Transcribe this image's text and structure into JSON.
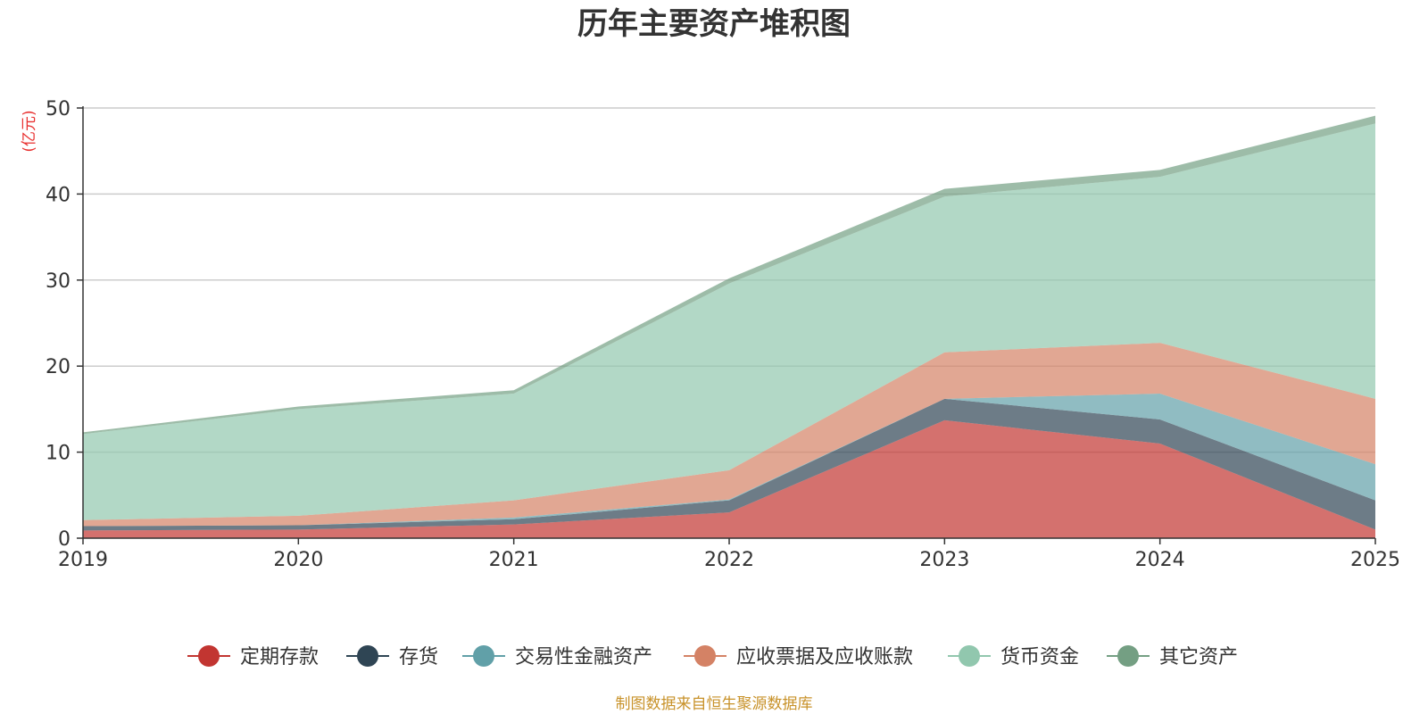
{
  "chart_data": {
    "type": "area",
    "stacked": true,
    "title": "历年主要资产堆积图",
    "ylabel": "(亿元)",
    "xlabel": "",
    "categories": [
      "2019",
      "2020",
      "2021",
      "2022",
      "2023",
      "2024",
      "2025"
    ],
    "ylim": [
      0,
      50
    ],
    "yticks": [
      "0",
      "10",
      "20",
      "30",
      "40",
      "50"
    ],
    "grid": true,
    "legend_position": "bottom",
    "series": [
      {
        "name": "定期存款",
        "color": "#c23531",
        "values": [
          0.9,
          1.0,
          1.6,
          3.0,
          13.7,
          11.0,
          1.0
        ]
      },
      {
        "name": "存货",
        "color": "#2f4554",
        "values": [
          0.5,
          0.5,
          0.6,
          1.4,
          2.5,
          2.8,
          3.4
        ]
      },
      {
        "name": "交易性金融资产",
        "color": "#61a0a8",
        "values": [
          0.0,
          0.0,
          0.2,
          0.1,
          0.0,
          3.0,
          4.2
        ]
      },
      {
        "name": "应收票据及应收账款",
        "color": "#d48265",
        "values": [
          0.7,
          1.1,
          2.0,
          3.4,
          5.4,
          5.9,
          7.6
        ]
      },
      {
        "name": "货币资金",
        "color": "#91c7ae",
        "values": [
          10.0,
          12.4,
          12.4,
          21.7,
          18.1,
          19.3,
          32.0
        ]
      },
      {
        "name": "其它资产",
        "color": "#749f83",
        "values": [
          0.2,
          0.3,
          0.4,
          0.6,
          0.9,
          0.8,
          0.9
        ]
      }
    ],
    "source_note": "制图数据来自恒生聚源数据库",
    "unit_color": "#e8302f",
    "source_color": "#c8922a"
  }
}
